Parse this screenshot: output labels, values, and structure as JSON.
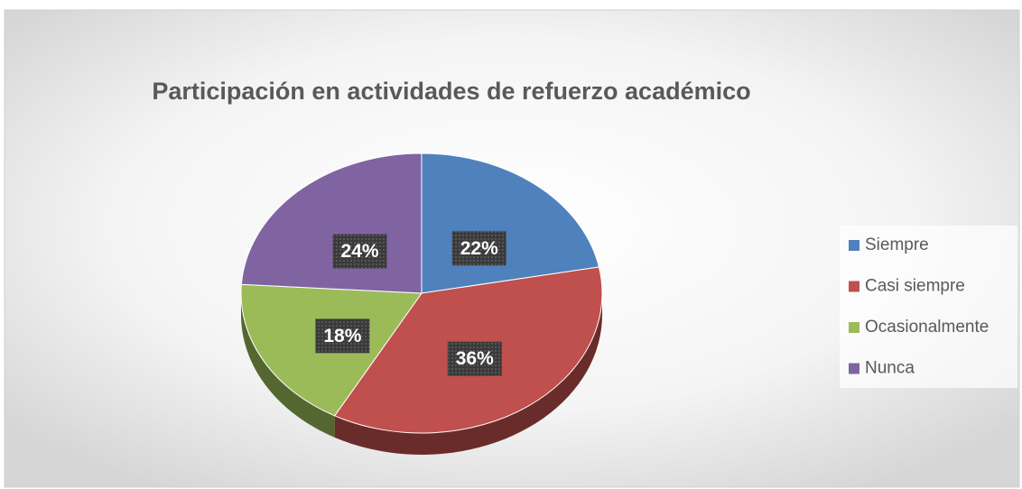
{
  "chart_data": {
    "type": "pie3d",
    "title": "Participación en actividades de refuerzo académico",
    "categories": [
      "Siempre",
      "Casi siempre",
      "Ocasionalmente",
      "Nunca"
    ],
    "values": [
      22,
      36,
      18,
      24
    ],
    "value_labels": [
      "22%",
      "36%",
      "18%",
      "24%"
    ],
    "colors": [
      "#4f81bd",
      "#c0504d",
      "#9bbb59",
      "#8064a2"
    ],
    "legend": "right"
  }
}
